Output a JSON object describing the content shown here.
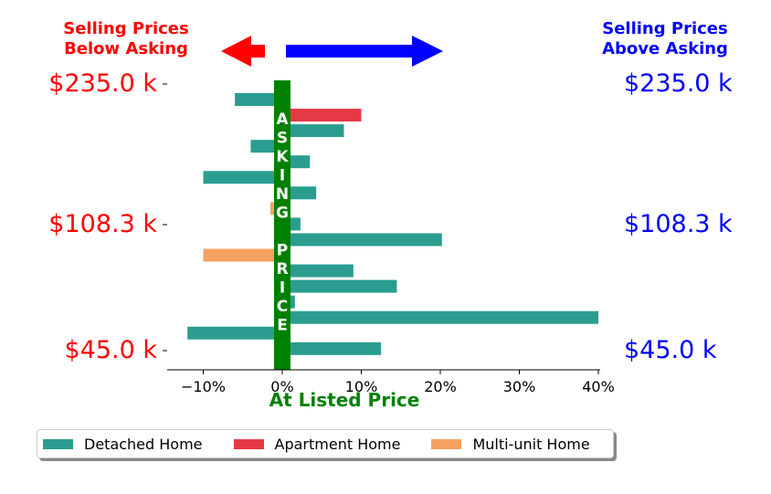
{
  "header": {
    "left_title": [
      "Selling Prices",
      "Below Asking"
    ],
    "right_title": [
      "Selling Prices",
      "Above Asking"
    ],
    "left_color": "#ff0000",
    "right_color": "#0000ff"
  },
  "price_labels": {
    "left": [
      "$235.0 k",
      "$108.3 k",
      "$45.0 k"
    ],
    "right": [
      "$235.0 k",
      "$108.3 k",
      "$45.0 k"
    ]
  },
  "asking_price_band": {
    "letters": [
      "A",
      "S",
      "K",
      "I",
      "N",
      "G",
      "",
      "P",
      "R",
      "I",
      "C",
      "E"
    ],
    "color": "#008000"
  },
  "xaxis_title": "At Listed Price",
  "legend": [
    {
      "label": "Detached Home",
      "color": "#2a9d8f"
    },
    {
      "label": "Apartment Home",
      "color": "#e63946"
    },
    {
      "label": "Multi-unit Home",
      "color": "#f4a261"
    }
  ],
  "chart_data": {
    "type": "bar",
    "orientation": "horizontal",
    "xlim": [
      -14.5,
      40
    ],
    "xticks": [
      -10,
      0,
      10,
      20,
      30,
      40
    ],
    "xtick_labels": [
      "−10%",
      "0%",
      "10%",
      "20%",
      "30%",
      "40%"
    ],
    "y_tick_labels": [
      "$235.0 k",
      "$108.3 k",
      "$45.0 k"
    ],
    "bars": [
      {
        "type": "Detached Home",
        "value": -6.0
      },
      {
        "type": "Apartment Home",
        "value": 10.0
      },
      {
        "type": "Detached Home",
        "value": 7.8
      },
      {
        "type": "Detached Home",
        "value": -4.0
      },
      {
        "type": "Detached Home",
        "value": 3.5
      },
      {
        "type": "Detached Home",
        "value": -10.0
      },
      {
        "type": "Detached Home",
        "value": 4.3
      },
      {
        "type": "Multi-unit Home",
        "value": -1.5
      },
      {
        "type": "Detached Home",
        "value": 2.3
      },
      {
        "type": "Detached Home",
        "value": 20.2
      },
      {
        "type": "Multi-unit Home",
        "value": -10.0
      },
      {
        "type": "Detached Home",
        "value": 9.0
      },
      {
        "type": "Detached Home",
        "value": 14.5
      },
      {
        "type": "Detached Home",
        "value": 1.6
      },
      {
        "type": "Detached Home",
        "value": 40.0
      },
      {
        "type": "Detached Home",
        "value": -12.0
      },
      {
        "type": "Detached Home",
        "value": 12.5
      }
    ]
  }
}
